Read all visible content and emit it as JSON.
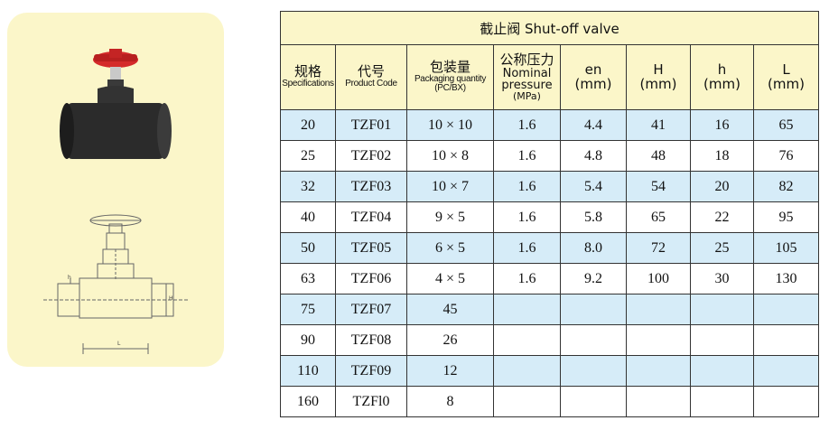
{
  "table": {
    "title": "截止阀 Shut-off valve",
    "headers": [
      {
        "zh": "规格",
        "en": "Specifications"
      },
      {
        "zh": "代号",
        "en": "Product Code"
      },
      {
        "zh": "包装量",
        "en": "Packaging quantity",
        "en2": "(PC/BX)"
      },
      {
        "zh": "公称压力",
        "en": "Nominal",
        "en2": "pressure",
        "unit": "(MPa)"
      },
      {
        "sym": "en",
        "unit": "(mm)"
      },
      {
        "sym": "H",
        "unit": "(mm)"
      },
      {
        "sym": "h",
        "unit": "(mm)"
      },
      {
        "sym": "L",
        "unit": "(mm)"
      }
    ],
    "rows": [
      [
        "20",
        "TZF01",
        "10 × 10",
        "1.6",
        "4.4",
        "41",
        "16",
        "65"
      ],
      [
        "25",
        "TZF02",
        "10 × 8",
        "1.6",
        "4.8",
        "48",
        "18",
        "76"
      ],
      [
        "32",
        "TZF03",
        "10 × 7",
        "1.6",
        "5.4",
        "54",
        "20",
        "82"
      ],
      [
        "40",
        "TZF04",
        "9 × 5",
        "1.6",
        "5.8",
        "65",
        "22",
        "95"
      ],
      [
        "50",
        "TZF05",
        "6 × 5",
        "1.6",
        "8.0",
        "72",
        "25",
        "105"
      ],
      [
        "63",
        "TZF06",
        "4 × 5",
        "1.6",
        "9.2",
        "100",
        "30",
        "130"
      ],
      [
        "75",
        "TZF07",
        "45",
        "",
        "",
        "",
        "",
        ""
      ],
      [
        "90",
        "TZF08",
        "26",
        "",
        "",
        "",
        "",
        ""
      ],
      [
        "110",
        "TZF09",
        "12",
        "",
        "",
        "",
        "",
        ""
      ],
      [
        "160",
        "TZFl0",
        "8",
        "",
        "",
        "",
        "",
        ""
      ]
    ]
  },
  "drawing_labels": {
    "h": "h",
    "H": "H",
    "L": "L"
  },
  "colors": {
    "panel_bg": "#fbf6c9",
    "row_alt": "#d6ecf8",
    "handwheel": "#d42a2a",
    "pipe": "#2b2b2b"
  }
}
